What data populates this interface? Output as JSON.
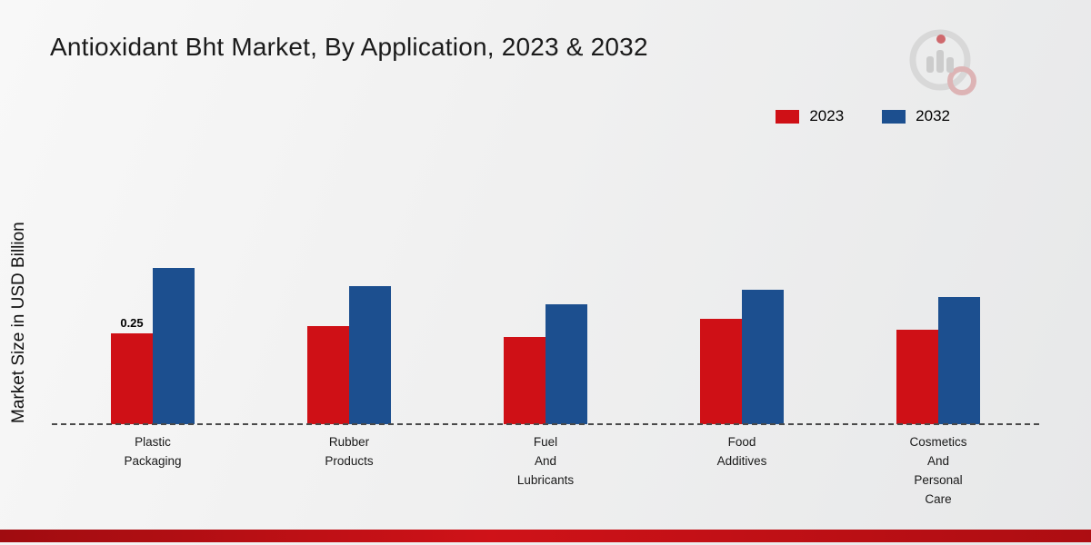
{
  "chart_data": {
    "type": "bar",
    "title": "Antioxidant Bht Market, By Application, 2023 & 2032",
    "xlabel": "",
    "ylabel": "Market Size in USD Billion",
    "categories": [
      "Plastic Packaging",
      "Rubber Products",
      "Fuel And Lubricants",
      "Food Additives",
      "Cosmetics And Personal Care"
    ],
    "series": [
      {
        "name": "2023",
        "color": "#cf1016",
        "values": [
          0.25,
          0.27,
          0.24,
          0.29,
          0.26
        ],
        "value_labels": [
          "0.25",
          "",
          "",
          "",
          ""
        ]
      },
      {
        "name": "2032",
        "color": "#1c4f8f",
        "values": [
          0.43,
          0.38,
          0.33,
          0.37,
          0.35
        ],
        "value_labels": [
          "",
          "",
          "",
          "",
          ""
        ]
      }
    ],
    "ylim": [
      0,
      0.5
    ],
    "grid": false,
    "legend_position": "top-right",
    "baseline_style": "dashed",
    "accent_colors": {
      "footer_bar": "#b50d12",
      "logo_gray": "#d6d6d6",
      "logo_red": "#cc5b60"
    }
  }
}
